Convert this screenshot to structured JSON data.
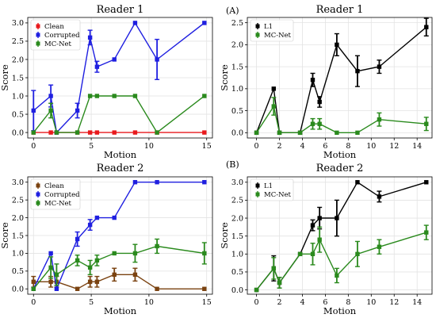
{
  "panel_tags": [
    "(A)",
    "(B)"
  ],
  "colors": {
    "Clean_r1": "#e8191c",
    "Clean_r2": "#7a4210",
    "Corrupted": "#1f1fe0",
    "MC-Net": "#2a8a1d",
    "L1": "#000000"
  },
  "chart_data": [
    {
      "type": "line",
      "title": "Reader 1",
      "xlabel": "Motion",
      "ylabel": "Score",
      "xlim": [
        -0.5,
        15.5
      ],
      "ylim": [
        -0.15,
        3.15
      ],
      "xticks": [
        0,
        5,
        10,
        15
      ],
      "yticks": [
        0.0,
        0.5,
        1.0,
        1.5,
        2.0,
        2.5,
        3.0
      ],
      "grid": true,
      "legend": "top-left",
      "series": [
        {
          "name": "Clean",
          "color": "#e8191c",
          "x": [
            0,
            1.5,
            2,
            3.8,
            4.9,
            5.5,
            7,
            8.8,
            10.7,
            14.8
          ],
          "y": [
            0,
            0,
            0,
            0,
            0,
            0,
            0,
            0,
            0,
            0
          ],
          "err": [
            0,
            0,
            0,
            0,
            0,
            0,
            0,
            0,
            0,
            0
          ]
        },
        {
          "name": "Corrupted",
          "color": "#1f1fe0",
          "x": [
            0,
            1.5,
            2,
            3.8,
            4.9,
            5.5,
            7,
            8.8,
            10.7,
            14.8
          ],
          "y": [
            0.6,
            1.0,
            0,
            0.6,
            2.6,
            1.8,
            2.0,
            3.0,
            2.0,
            3.0
          ],
          "err": [
            0.55,
            0.3,
            0,
            0.2,
            0.2,
            0.15,
            0,
            0,
            0.55,
            0
          ]
        },
        {
          "name": "MC-Net",
          "color": "#2a8a1d",
          "x": [
            0,
            1.5,
            2,
            3.8,
            4.9,
            5.5,
            7,
            8.8,
            10.7,
            14.8
          ],
          "y": [
            0,
            0.6,
            0,
            0,
            1.0,
            1.0,
            1.0,
            1.0,
            0,
            1.0
          ],
          "err": [
            0,
            0.2,
            0,
            0,
            0,
            0,
            0,
            0,
            0,
            0
          ]
        }
      ]
    },
    {
      "type": "line",
      "title": "Reader 1",
      "xlabel": "Motion",
      "ylabel": "Score",
      "xlim": [
        -0.8,
        15.3
      ],
      "ylim": [
        -0.12,
        2.62
      ],
      "xticks": [
        0,
        2,
        4,
        6,
        8,
        10,
        12,
        14
      ],
      "yticks": [
        0.0,
        0.5,
        1.0,
        1.5,
        2.0,
        2.5
      ],
      "grid": true,
      "legend": "top-left",
      "series": [
        {
          "name": "L1",
          "color": "#000000",
          "x": [
            0,
            1.5,
            2,
            3.8,
            4.9,
            5.5,
            7,
            8.8,
            10.7,
            14.8
          ],
          "y": [
            0,
            1.0,
            0,
            0,
            1.2,
            0.7,
            2.0,
            1.4,
            1.5,
            2.4
          ],
          "err": [
            0,
            0,
            0,
            0,
            0.15,
            0.12,
            0.25,
            0.35,
            0.15,
            0.2
          ]
        },
        {
          "name": "MC-Net",
          "color": "#2a8a1d",
          "x": [
            0,
            1.5,
            2,
            3.8,
            4.9,
            5.5,
            7,
            8.8,
            10.7,
            14.8
          ],
          "y": [
            0,
            0.6,
            0,
            0,
            0.2,
            0.2,
            0,
            0,
            0.3,
            0.2
          ],
          "err": [
            0,
            0.2,
            0,
            0,
            0.12,
            0.12,
            0,
            0,
            0.15,
            0.15
          ]
        }
      ]
    },
    {
      "type": "line",
      "title": "Reader 2",
      "xlabel": "Motion",
      "ylabel": "Score",
      "xlim": [
        -0.5,
        15.5
      ],
      "ylim": [
        -0.15,
        3.15
      ],
      "xticks": [
        0,
        5,
        10,
        15
      ],
      "yticks": [
        0.0,
        0.5,
        1.0,
        1.5,
        2.0,
        2.5,
        3.0
      ],
      "grid": true,
      "legend": "top-left",
      "series": [
        {
          "name": "Clean",
          "color": "#7a4210",
          "x": [
            0,
            1.5,
            2,
            3.8,
            4.9,
            5.5,
            7,
            8.8,
            10.7,
            14.8
          ],
          "y": [
            0.2,
            0.2,
            0.2,
            0,
            0.2,
            0.2,
            0.4,
            0.4,
            0,
            0
          ],
          "err": [
            0.15,
            0.15,
            0.15,
            0,
            0.15,
            0.15,
            0.18,
            0.18,
            0,
            0
          ]
        },
        {
          "name": "Corrupted",
          "color": "#1f1fe0",
          "x": [
            0,
            1.5,
            2,
            3.8,
            4.9,
            5.5,
            7,
            8.8,
            10.7,
            14.8
          ],
          "y": [
            0,
            1.0,
            0,
            1.4,
            1.8,
            2.0,
            2.0,
            3.0,
            3.0,
            3.0
          ],
          "err": [
            0,
            0,
            0,
            0.2,
            0.15,
            0,
            0,
            0,
            0,
            0
          ]
        },
        {
          "name": "MC-Net",
          "color": "#2a8a1d",
          "x": [
            0,
            1.5,
            2,
            3.8,
            4.9,
            5.5,
            7,
            8.8,
            10.7,
            14.8
          ],
          "y": [
            0,
            0.6,
            0.4,
            0.8,
            0.6,
            0.8,
            1.0,
            1.0,
            1.2,
            1.0
          ],
          "err": [
            0,
            0.3,
            0.3,
            0.15,
            0.2,
            0.15,
            0,
            0.25,
            0.2,
            0.3
          ]
        }
      ]
    },
    {
      "type": "line",
      "title": "Reader 2",
      "xlabel": "Motion",
      "ylabel": "Score",
      "xlim": [
        -0.8,
        15.3
      ],
      "ylim": [
        -0.12,
        3.15
      ],
      "xticks": [
        0,
        2,
        4,
        6,
        8,
        10,
        12,
        14
      ],
      "yticks": [
        0.0,
        0.5,
        1.0,
        1.5,
        2.0,
        2.5,
        3.0
      ],
      "grid": true,
      "legend": "top-left",
      "series": [
        {
          "name": "L1",
          "color": "#000000",
          "x": [
            0,
            1.5,
            2,
            3.8,
            4.9,
            5.5,
            7,
            8.8,
            10.7,
            14.8
          ],
          "y": [
            0,
            0.6,
            0.2,
            1.0,
            1.8,
            2.0,
            2.0,
            3.0,
            2.6,
            3.0
          ],
          "err": [
            0,
            0.35,
            0.15,
            0,
            0.15,
            0.3,
            0.5,
            0,
            0.15,
            0
          ]
        },
        {
          "name": "MC-Net",
          "color": "#2a8a1d",
          "x": [
            0,
            1.5,
            2,
            3.8,
            4.9,
            5.5,
            7,
            8.8,
            10.7,
            14.8
          ],
          "y": [
            0,
            0.6,
            0.2,
            1.0,
            1.0,
            1.4,
            0.4,
            1.0,
            1.2,
            1.6
          ],
          "err": [
            0,
            0.3,
            0.15,
            0,
            0.3,
            0.35,
            0.2,
            0.35,
            0.2,
            0.2
          ]
        }
      ]
    }
  ]
}
